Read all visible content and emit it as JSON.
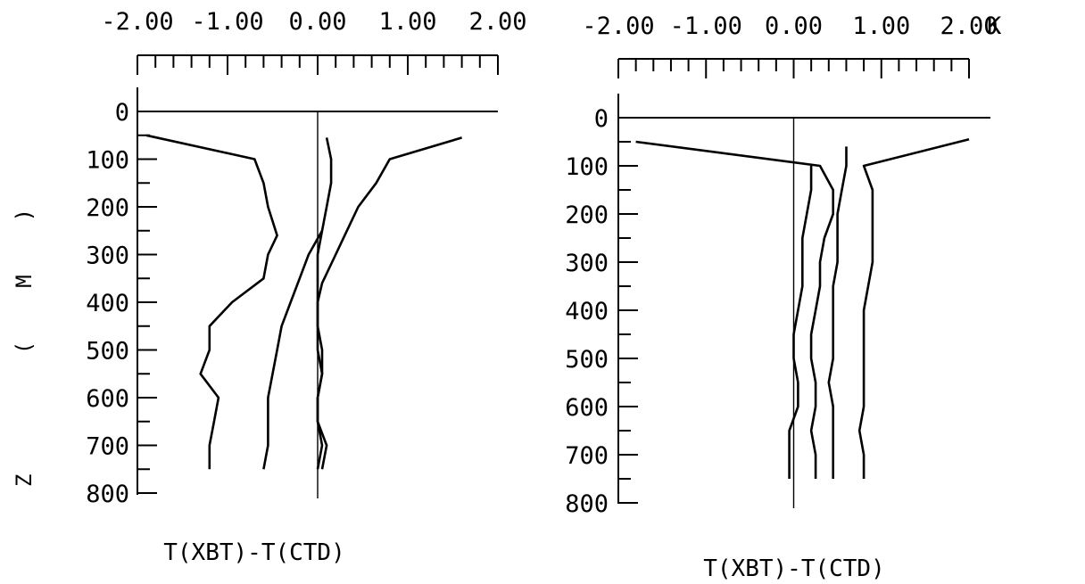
{
  "chart_data": [
    {
      "type": "line",
      "title": "",
      "xlabel": "T(XBT)-T(CTD)",
      "ylabel": "Z (M)",
      "x_unit": "",
      "xlim": [
        -2,
        2
      ],
      "ylim": [
        800,
        0
      ],
      "x_ticks": [
        "-2.00",
        "-1.00",
        "0.00",
        "1.00",
        "2.00"
      ],
      "y_ticks": [
        "0",
        "100",
        "200",
        "300",
        "400",
        "500",
        "600",
        "700",
        "800"
      ],
      "grid": false,
      "series": [
        {
          "depth": [
            50,
            100,
            150,
            200,
            260,
            300,
            350,
            400,
            450,
            500,
            550,
            600,
            650,
            700,
            750
          ],
          "values": [
            -1.9,
            -0.7,
            -0.6,
            -0.55,
            -0.45,
            -0.55,
            -0.6,
            -0.95,
            -1.2,
            -1.2,
            -1.3,
            -1.1,
            -1.15,
            -1.2,
            -1.2
          ]
        },
        {
          "depth": [
            250,
            300,
            350,
            400,
            450,
            500,
            550,
            600,
            650,
            700,
            750
          ],
          "values": [
            0.05,
            -0.1,
            -0.2,
            -0.3,
            -0.4,
            -0.45,
            -0.5,
            -0.55,
            -0.55,
            -0.55,
            -0.6
          ]
        },
        {
          "depth": [
            55,
            100,
            150,
            200,
            250,
            300,
            350,
            400,
            450,
            500,
            550,
            600,
            650,
            700,
            750
          ],
          "values": [
            0.1,
            0.15,
            0.15,
            0.1,
            0.05,
            0.0,
            0.0,
            0.0,
            0.0,
            0.05,
            0.05,
            0.0,
            0.0,
            0.1,
            0.05
          ]
        },
        {
          "depth": [
            55,
            100,
            150,
            200,
            260,
            300,
            360,
            400,
            450,
            500,
            550,
            600,
            650,
            700,
            750
          ],
          "values": [
            1.6,
            0.8,
            0.65,
            0.45,
            0.3,
            0.2,
            0.05,
            0.0,
            0.0,
            0.0,
            0.05,
            0.0,
            0.0,
            0.05,
            0.0
          ]
        }
      ]
    },
    {
      "type": "line",
      "title": "",
      "xlabel": "T(XBT)-T(CTD)",
      "ylabel": "",
      "x_unit": "K",
      "xlim": [
        -2,
        2
      ],
      "ylim": [
        800,
        0
      ],
      "x_ticks": [
        "-2.00",
        "-1.00",
        "0.00",
        "1.00",
        "2.00"
      ],
      "y_ticks": [
        "0",
        "100",
        "200",
        "300",
        "400",
        "500",
        "600",
        "700",
        "800"
      ],
      "grid": false,
      "series": [
        {
          "depth": [
            50,
            100,
            150,
            200,
            250,
            300,
            350,
            400,
            450,
            500,
            550,
            600,
            650,
            700,
            750
          ],
          "values": [
            -1.8,
            0.3,
            0.45,
            0.45,
            0.35,
            0.3,
            0.3,
            0.25,
            0.2,
            0.2,
            0.25,
            0.25,
            0.2,
            0.25,
            0.25
          ]
        },
        {
          "depth": [
            100,
            150,
            200,
            250,
            300,
            350,
            400,
            450,
            500,
            550,
            600,
            650,
            700,
            750
          ],
          "values": [
            0.2,
            0.2,
            0.15,
            0.1,
            0.1,
            0.1,
            0.05,
            0.0,
            0.0,
            0.05,
            0.05,
            -0.05,
            -0.05,
            -0.05
          ]
        },
        {
          "depth": [
            60,
            100,
            150,
            200,
            250,
            300,
            350,
            400,
            450,
            500,
            550,
            600,
            650,
            700,
            750
          ],
          "values": [
            0.6,
            0.6,
            0.55,
            0.5,
            0.5,
            0.5,
            0.45,
            0.45,
            0.45,
            0.45,
            0.4,
            0.45,
            0.45,
            0.45,
            0.45
          ]
        },
        {
          "depth": [
            45,
            100,
            150,
            200,
            250,
            300,
            350,
            400,
            450,
            500,
            550,
            600,
            650,
            700,
            750
          ],
          "values": [
            2.0,
            0.8,
            0.9,
            0.9,
            0.9,
            0.9,
            0.85,
            0.8,
            0.8,
            0.8,
            0.8,
            0.8,
            0.75,
            0.8,
            0.8
          ]
        }
      ]
    }
  ]
}
